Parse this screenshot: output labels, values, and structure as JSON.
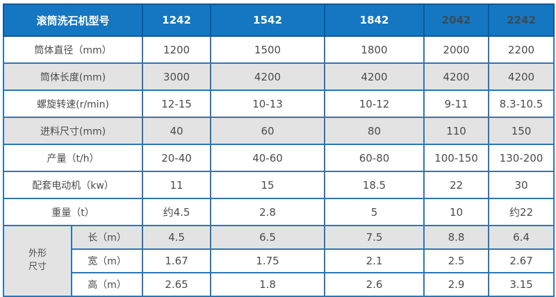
{
  "chart_data": {
    "type": "table",
    "header": {
      "title": "滚筒洗石机型号",
      "models": [
        "1242",
        "1542",
        "1842",
        "2042",
        "2242"
      ]
    },
    "rows": [
      {
        "label": "筒体直径（mm）",
        "values": [
          "1200",
          "1500",
          "1800",
          "2000",
          "2200"
        ]
      },
      {
        "label": "筒体长度(mm)",
        "values": [
          "3000",
          "4200",
          "4200",
          "4200",
          "4200"
        ]
      },
      {
        "label": "螺旋转速(r/min)",
        "values": [
          "12-15",
          "10-13",
          "10-12",
          "9-11",
          "8.3-10.5"
        ]
      },
      {
        "label": "进料尺寸(mm)",
        "values": [
          "40",
          "60",
          "80",
          "110",
          "150"
        ]
      },
      {
        "label": "产量（t/h）",
        "values": [
          "20-40",
          "40-60",
          "60-80",
          "100-150",
          "130-200"
        ]
      },
      {
        "label": "配套电动机（kw）",
        "values": [
          "11",
          "15",
          "18.5",
          "22",
          "30"
        ]
      },
      {
        "label": "重量（t）",
        "values": [
          "约4.5",
          "2.8",
          "5",
          "10",
          "约22"
        ]
      }
    ],
    "outline_group": {
      "label": "外形尺寸",
      "label_lines": [
        "外形",
        "尺寸"
      ],
      "rows": [
        {
          "label": "长（m）",
          "values": [
            "4.5",
            "6.5",
            "7.5",
            "8.8",
            "6.4"
          ]
        },
        {
          "label": "宽（m）",
          "values": [
            "1.67",
            "1.75",
            "2.1",
            "2.5",
            "2.67"
          ]
        },
        {
          "label": "高（m）",
          "values": [
            "2.65",
            "1.8",
            "2.6",
            "2.9",
            "3.15"
          ]
        }
      ]
    },
    "layout": {
      "legend_position": "none",
      "grid": "full-borders",
      "shaded_row_indices": [
        "筒体长度(mm)",
        "进料尺寸(mm)",
        "长（m）"
      ]
    },
    "colors": {
      "header_bg": "#1577c2",
      "header_text": "#ffffff",
      "header_text_dark": "#3e4a52",
      "header_border": "#0f589a",
      "body_border": "#2e74b5",
      "body_text": "#4b4b4b",
      "shaded_row_bg": "#e3e3e3",
      "row_bg": "#ffffff"
    }
  }
}
